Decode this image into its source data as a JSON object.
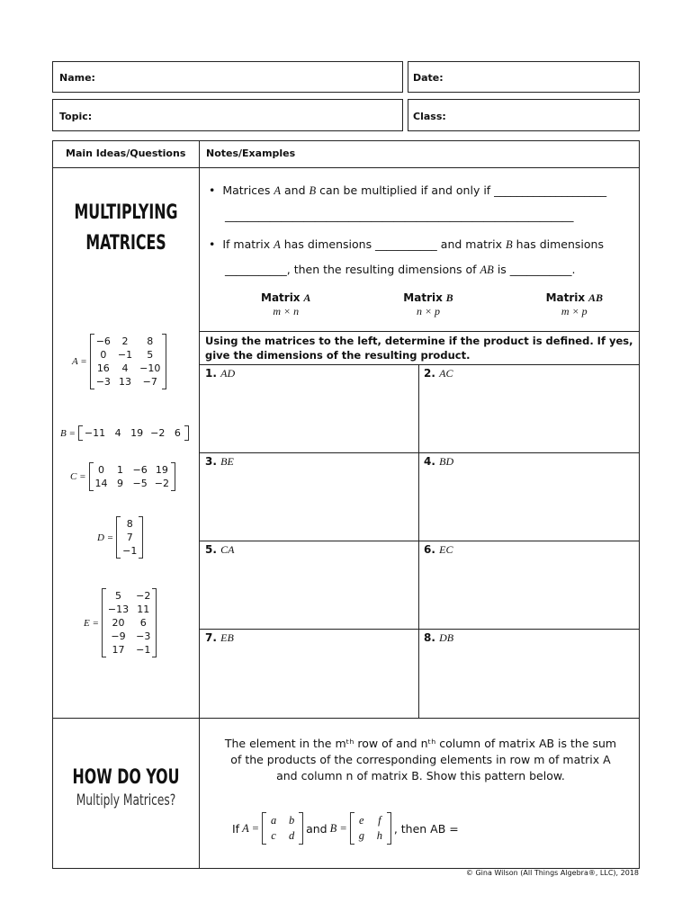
{
  "header": {
    "name": "Name:",
    "date": "Date:",
    "topic": "Topic:",
    "class": "Class:"
  },
  "table": {
    "col1": "Main Ideas/Questions",
    "col2": "Notes/Examples"
  },
  "section1": {
    "title_line1": "MULTIPLYING",
    "title_line2": "MATRICES",
    "bullet1_a": "Matrices",
    "bullet1_A": "A",
    "bullet1_b": "and",
    "bullet1_B": "B",
    "bullet1_c": "can be multiplied if and only if ____________________",
    "bullet1_line2": "______________________________________________________________",
    "bullet2_a": "If matrix",
    "bullet2_A": "A",
    "bullet2_b": "has dimensions ___________ and matrix",
    "bullet2_B": "B",
    "bullet2_c": "has dimensions",
    "bullet2_line2": "___________, then the resulting dimensions of",
    "bullet2_AB": "AB",
    "bullet2_end": "is ___________.",
    "dims": [
      {
        "label": "Matrix",
        "var": "A",
        "dim": "m × n"
      },
      {
        "label": "Matrix",
        "var": "B",
        "dim": "n × p"
      },
      {
        "label": "Matrix",
        "var": "AB",
        "dim": "m × p"
      }
    ]
  },
  "matrices": {
    "A": {
      "name": "A =",
      "rows": [
        [
          "−6",
          "2",
          "8"
        ],
        [
          "0",
          "−1",
          "5"
        ],
        [
          "16",
          "4",
          "−10"
        ],
        [
          "−3",
          "13",
          "−7"
        ]
      ]
    },
    "B": {
      "name": "B =",
      "rows": [
        [
          "−11",
          "4",
          "19",
          "−2",
          "6"
        ]
      ]
    },
    "C": {
      "name": "C =",
      "rows": [
        [
          "0",
          "1",
          "−6",
          "19"
        ],
        [
          "14",
          "9",
          "−5",
          "−2"
        ]
      ]
    },
    "D": {
      "name": "D =",
      "rows": [
        [
          "8"
        ],
        [
          "7"
        ],
        [
          "−1"
        ]
      ]
    },
    "E": {
      "name": "E =",
      "rows": [
        [
          "5",
          "−2"
        ],
        [
          "−13",
          "11"
        ],
        [
          "20",
          "6"
        ],
        [
          "−9",
          "−3"
        ],
        [
          "17",
          "−1"
        ]
      ]
    }
  },
  "instructions": "Using the matrices to the left, determine if the product is defined.  If yes, give the dimensions of the resulting product.",
  "problems": [
    {
      "n": "1.",
      "p": "AD"
    },
    {
      "n": "2.",
      "p": "AC"
    },
    {
      "n": "3.",
      "p": "BE"
    },
    {
      "n": "4.",
      "p": "BD"
    },
    {
      "n": "5.",
      "p": "CA"
    },
    {
      "n": "6.",
      "p": "EC"
    },
    {
      "n": "7.",
      "p": "EB"
    },
    {
      "n": "8.",
      "p": "DB"
    }
  ],
  "section2": {
    "title_line1": "HOW DO YOU",
    "title_line2": "Multiply Matrices?",
    "text1": "The element in the mᵗʰ row of and nᵗʰ column of matrix AB is the sum",
    "text2": "of the products of the corresponding elements in row m of matrix A",
    "text3": "and column n of matrix B.  Show this pattern below.",
    "if": "If",
    "A": "A =",
    "and": "and",
    "B": "B =",
    "then": ", then AB =",
    "matA": [
      [
        "a",
        "b"
      ],
      [
        "c",
        "d"
      ]
    ],
    "matB": [
      [
        "e",
        "f"
      ],
      [
        "g",
        "h"
      ]
    ]
  },
  "footer": "© Gina Wilson (All Things Algebra®, LLC), 2018"
}
